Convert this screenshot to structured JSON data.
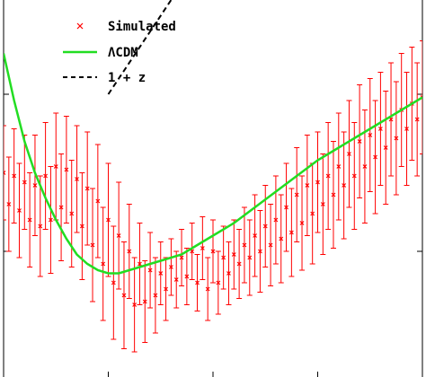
{
  "chart_data": {
    "type": "scatter",
    "title": "",
    "xlabel": "",
    "ylabel": "",
    "xlim": [
      0,
      2
    ],
    "ylim": [
      0.6,
      1.8
    ],
    "grid": false,
    "legend_position": "top-left",
    "legend": [
      {
        "name": "Simulated",
        "marker": "x",
        "color": "#ff0000"
      },
      {
        "name": "ΛCDM",
        "marker": "line",
        "color": "#22dd22"
      },
      {
        "name": "1 + z",
        "marker": "dashed-line",
        "color": "#000000"
      }
    ],
    "series": [
      {
        "name": "Simulated",
        "kind": "points-with-errorbars",
        "color": "#ff0000",
        "x": [
          0.0,
          0.05,
          0.1,
          0.15,
          0.2,
          0.25,
          0.3,
          0.35,
          0.4,
          0.45,
          0.5,
          0.55,
          0.6,
          0.65,
          0.7,
          0.75,
          0.8,
          0.85,
          0.9,
          0.95,
          1.0,
          1.05,
          1.1,
          1.15,
          1.2,
          1.25,
          1.3,
          1.35,
          1.4,
          1.45,
          1.5,
          1.55,
          1.6,
          1.65,
          1.7,
          1.75,
          1.8,
          1.85,
          1.9,
          1.95,
          2.0
        ],
        "y": [
          1.25,
          1.24,
          1.22,
          1.21,
          1.24,
          1.27,
          1.26,
          1.23,
          1.2,
          1.16,
          1.1,
          1.05,
          1.0,
          0.96,
          0.94,
          0.93,
          0.95,
          0.98,
          1.0,
          1.01,
          1.0,
          0.98,
          0.99,
          1.02,
          1.05,
          1.08,
          1.1,
          1.14,
          1.18,
          1.21,
          1.22,
          1.24,
          1.27,
          1.31,
          1.35,
          1.37,
          1.39,
          1.42,
          1.45,
          1.47,
          1.49
        ],
        "y_alt": [
          1.15,
          1.13,
          1.1,
          1.08,
          1.1,
          1.14,
          1.12,
          1.08,
          1.02,
          0.96,
          0.9,
          0.86,
          0.83,
          0.84,
          0.86,
          0.88,
          0.91,
          0.92,
          0.9,
          0.88,
          0.9,
          0.93,
          0.96,
          0.98,
          1.0,
          1.02,
          1.04,
          1.06,
          1.09,
          1.12,
          1.15,
          1.18,
          1.21,
          1.24,
          1.27,
          1.3,
          1.33,
          1.36,
          1.39,
          1.42,
          1.46
        ],
        "err": [
          0.15,
          0.15,
          0.15,
          0.16,
          0.17,
          0.17,
          0.17,
          0.17,
          0.18,
          0.18,
          0.18,
          0.17,
          0.15,
          0.13,
          0.12,
          0.1,
          0.09,
          0.09,
          0.09,
          0.1,
          0.1,
          0.1,
          0.11,
          0.12,
          0.13,
          0.13,
          0.14,
          0.14,
          0.15,
          0.16,
          0.16,
          0.17,
          0.17,
          0.17,
          0.18,
          0.18,
          0.18,
          0.18,
          0.18,
          0.18,
          0.18
        ]
      },
      {
        "name": "ΛCDM",
        "kind": "line",
        "color": "#22dd22",
        "x": [
          0.0,
          0.05,
          0.1,
          0.15,
          0.2,
          0.25,
          0.3,
          0.35,
          0.4,
          0.45,
          0.5,
          0.55,
          0.6,
          0.65,
          0.7,
          0.75,
          0.8,
          0.85,
          0.9,
          0.95,
          1.0,
          1.1,
          1.2,
          1.3,
          1.4,
          1.5,
          1.6,
          1.7,
          1.8,
          1.9,
          2.0
        ],
        "y": [
          1.63,
          1.48,
          1.35,
          1.25,
          1.17,
          1.1,
          1.04,
          0.99,
          0.96,
          0.94,
          0.93,
          0.93,
          0.94,
          0.95,
          0.96,
          0.97,
          0.98,
          0.99,
          1.01,
          1.03,
          1.05,
          1.09,
          1.14,
          1.19,
          1.24,
          1.29,
          1.33,
          1.37,
          1.41,
          1.45,
          1.49
        ]
      },
      {
        "name": "1 + z",
        "kind": "dashed-line",
        "color": "#000000",
        "x": [
          0.0,
          2.0
        ],
        "y": [
          1.0,
          3.0
        ]
      }
    ]
  }
}
